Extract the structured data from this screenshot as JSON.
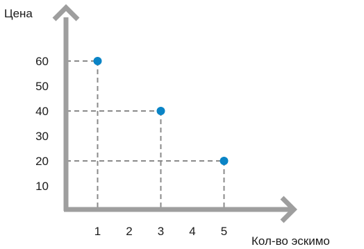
{
  "chart_data": {
    "type": "scatter",
    "title": "",
    "xlabel": "Кол-во эскимо",
    "ylabel": "Цена",
    "x_ticks": [
      1,
      2,
      3,
      4,
      5
    ],
    "y_ticks": [
      10,
      20,
      30,
      40,
      50,
      60
    ],
    "xlim": [
      0,
      6.5
    ],
    "ylim": [
      0,
      72
    ],
    "points": [
      {
        "x": 1,
        "y": 60
      },
      {
        "x": 3,
        "y": 40
      },
      {
        "x": 5,
        "y": 20
      }
    ],
    "guide_lines": true,
    "grid": false,
    "point_color": "#0a84c6",
    "axis_color": "#9e9e9e",
    "guide_color": "#8a8a8a"
  }
}
